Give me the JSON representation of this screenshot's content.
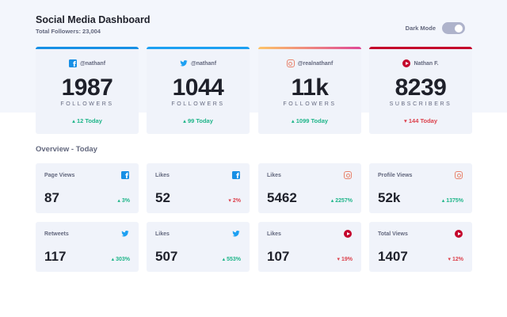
{
  "header": {
    "title": "Social Media Dashboard",
    "total_followers": "Total Followers: 23,004",
    "dark_mode_label": "Dark Mode"
  },
  "colors": {
    "facebook": "#178fe5",
    "twitter": "#1ca0f2",
    "instagram_gradient": [
      "#fdc468",
      "#df4996"
    ],
    "youtube": "#c4032b",
    "up": "#1eb589",
    "down": "#dc414c"
  },
  "cards": [
    {
      "icon": "facebook-icon",
      "handle": "@nathanf",
      "count": "1987",
      "unit": "FOLLOWERS",
      "today": "12 Today",
      "trend": "up"
    },
    {
      "icon": "twitter-icon",
      "handle": "@nathanf",
      "count": "1044",
      "unit": "FOLLOWERS",
      "today": "99 Today",
      "trend": "up"
    },
    {
      "icon": "instagram-icon",
      "handle": "@realnathanf",
      "count": "11k",
      "unit": "FOLLOWERS",
      "today": "1099 Today",
      "trend": "up"
    },
    {
      "icon": "youtube-icon",
      "handle": "Nathan F.",
      "count": "8239",
      "unit": "SUBSCRIBERS",
      "today": "144 Today",
      "trend": "down"
    }
  ],
  "overview": {
    "title": "Overview - Today",
    "items": [
      {
        "label": "Page Views",
        "icon": "facebook-icon",
        "value": "87",
        "pct": "3%",
        "trend": "up"
      },
      {
        "label": "Likes",
        "icon": "facebook-icon",
        "value": "52",
        "pct": "2%",
        "trend": "down"
      },
      {
        "label": "Likes",
        "icon": "instagram-icon",
        "value": "5462",
        "pct": "2257%",
        "trend": "up"
      },
      {
        "label": "Profile Views",
        "icon": "instagram-icon",
        "value": "52k",
        "pct": "1375%",
        "trend": "up"
      },
      {
        "label": "Retweets",
        "icon": "twitter-icon",
        "value": "117",
        "pct": "303%",
        "trend": "up"
      },
      {
        "label": "Likes",
        "icon": "twitter-icon",
        "value": "507",
        "pct": "553%",
        "trend": "up"
      },
      {
        "label": "Likes",
        "icon": "youtube-icon",
        "value": "107",
        "pct": "19%",
        "trend": "down"
      },
      {
        "label": "Total Views",
        "icon": "youtube-icon",
        "value": "1407",
        "pct": "12%",
        "trend": "down"
      }
    ]
  }
}
